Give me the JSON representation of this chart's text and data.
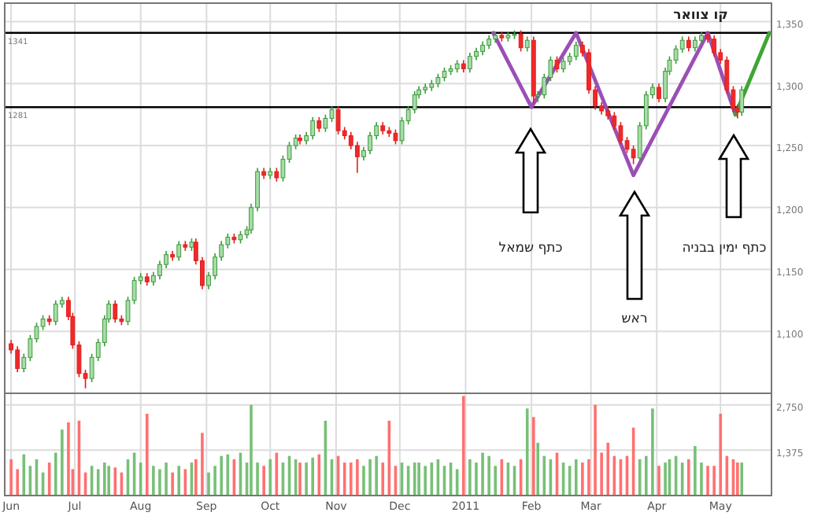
{
  "chart_data": [
    {
      "type": "candlestick",
      "tick_labels": "y",
      "grid": true,
      "xlim": [
        "2010-05-29",
        "2011-05-25"
      ],
      "xticks": [
        {
          "value": "2010-06-01",
          "label": null
        },
        {
          "value": "2010-07-01",
          "label": null
        },
        {
          "value": "2010-08-01",
          "label": null
        },
        {
          "value": "2010-09-01",
          "label": null
        },
        {
          "value": "2010-10-01",
          "label": null
        },
        {
          "value": "2010-11-01",
          "label": null
        },
        {
          "value": "2010-12-01",
          "label": null
        },
        {
          "value": "2011-01-01",
          "label": null
        },
        {
          "value": "2011-02-01",
          "label": null
        },
        {
          "value": "2011-03-01",
          "label": null
        },
        {
          "value": "2011-04-01",
          "label": null
        },
        {
          "value": "2011-05-01",
          "label": null
        }
      ],
      "ylim": [
        1050,
        1365
      ],
      "yticks": [
        {
          "value": 1100,
          "label": "1,100"
        },
        {
          "value": 1150,
          "label": "1,150"
        },
        {
          "value": 1200,
          "label": "1,200"
        },
        {
          "value": 1250,
          "label": "1,250"
        },
        {
          "value": 1300,
          "label": "1,300"
        },
        {
          "value": 1350,
          "label": "1,350"
        }
      ],
      "x": [
        "2010-06-01",
        "2010-06-04",
        "2010-06-07",
        "2010-06-10",
        "2010-06-13",
        "2010-06-16",
        "2010-06-19",
        "2010-06-22",
        "2010-06-25",
        "2010-06-28",
        "2010-06-30",
        "2010-07-03",
        "2010-07-06",
        "2010-07-09",
        "2010-07-12",
        "2010-07-15",
        "2010-07-17",
        "2010-07-20",
        "2010-07-23",
        "2010-07-26",
        "2010-07-29",
        "2010-08-01",
        "2010-08-04",
        "2010-08-07",
        "2010-08-10",
        "2010-08-13",
        "2010-08-16",
        "2010-08-19",
        "2010-08-22",
        "2010-08-25",
        "2010-08-27",
        "2010-08-30",
        "2010-09-02",
        "2010-09-05",
        "2010-09-08",
        "2010-09-11",
        "2010-09-14",
        "2010-09-17",
        "2010-09-20",
        "2010-09-22",
        "2010-09-25",
        "2010-09-28",
        "2010-10-01",
        "2010-10-04",
        "2010-10-07",
        "2010-10-10",
        "2010-10-13",
        "2010-10-15",
        "2010-10-18",
        "2010-10-21",
        "2010-10-24",
        "2010-10-27",
        "2010-10-30",
        "2010-11-02",
        "2010-11-05",
        "2010-11-08",
        "2010-11-11",
        "2010-11-14",
        "2010-11-17",
        "2010-11-20",
        "2010-11-23",
        "2010-11-26",
        "2010-11-29",
        "2010-12-02",
        "2010-12-05",
        "2010-12-08",
        "2010-12-10",
        "2010-12-13",
        "2010-12-16",
        "2010-12-19",
        "2010-12-22",
        "2010-12-25",
        "2010-12-28",
        "2010-12-31",
        "2011-01-03",
        "2011-01-06",
        "2011-01-09",
        "2011-01-12",
        "2011-01-15",
        "2011-01-18",
        "2011-01-21",
        "2011-01-24",
        "2011-01-27",
        "2011-01-30",
        "2011-02-02",
        "2011-02-04",
        "2011-02-07",
        "2011-02-10",
        "2011-02-13",
        "2011-02-16",
        "2011-02-19",
        "2011-02-22",
        "2011-02-25",
        "2011-02-28",
        "2011-03-03",
        "2011-03-06",
        "2011-03-09",
        "2011-03-12",
        "2011-03-15",
        "2011-03-18",
        "2011-03-21",
        "2011-03-24",
        "2011-03-27",
        "2011-03-30",
        "2011-04-02",
        "2011-04-05",
        "2011-04-07",
        "2011-04-10",
        "2011-04-13",
        "2011-04-16",
        "2011-04-19",
        "2011-04-22",
        "2011-04-25",
        "2011-04-28",
        "2011-05-01",
        "2011-05-04",
        "2011-05-07",
        "2011-05-09",
        "2011-05-11"
      ],
      "ohlc": [
        [
          1090,
          1093,
          1082,
          1085
        ],
        [
          1085,
          1088,
          1067,
          1070
        ],
        [
          1070,
          1082,
          1067,
          1079
        ],
        [
          1079,
          1097,
          1076,
          1094
        ],
        [
          1094,
          1107,
          1091,
          1104
        ],
        [
          1104,
          1113,
          1101,
          1110
        ],
        [
          1110,
          1113,
          1105,
          1108
        ],
        [
          1108,
          1125,
          1105,
          1122
        ],
        [
          1122,
          1128,
          1119,
          1125
        ],
        [
          1125,
          1128,
          1109,
          1112
        ],
        [
          1112,
          1115,
          1086,
          1089
        ],
        [
          1089,
          1092,
          1063,
          1066
        ],
        [
          1066,
          1069,
          1054,
          1062
        ],
        [
          1062,
          1082,
          1059,
          1079
        ],
        [
          1079,
          1094,
          1076,
          1091
        ],
        [
          1091,
          1113,
          1088,
          1110
        ],
        [
          1110,
          1125,
          1107,
          1122
        ],
        [
          1122,
          1125,
          1107,
          1110
        ],
        [
          1110,
          1113,
          1105,
          1108
        ],
        [
          1108,
          1128,
          1105,
          1125
        ],
        [
          1125,
          1144,
          1122,
          1141
        ],
        [
          1141,
          1147,
          1138,
          1144
        ],
        [
          1144,
          1147,
          1137,
          1140
        ],
        [
          1140,
          1148,
          1137,
          1145
        ],
        [
          1145,
          1157,
          1142,
          1154
        ],
        [
          1154,
          1165,
          1151,
          1162
        ],
        [
          1162,
          1165,
          1157,
          1160
        ],
        [
          1160,
          1173,
          1157,
          1170
        ],
        [
          1170,
          1173,
          1165,
          1168
        ],
        [
          1168,
          1175,
          1165,
          1172
        ],
        [
          1172,
          1175,
          1154,
          1157
        ],
        [
          1157,
          1160,
          1134,
          1137
        ],
        [
          1137,
          1148,
          1134,
          1145
        ],
        [
          1145,
          1163,
          1142,
          1160
        ],
        [
          1160,
          1173,
          1157,
          1170
        ],
        [
          1170,
          1179,
          1167,
          1176
        ],
        [
          1176,
          1179,
          1171,
          1174
        ],
        [
          1174,
          1181,
          1171,
          1178
        ],
        [
          1178,
          1185,
          1175,
          1182
        ],
        [
          1182,
          1203,
          1179,
          1200
        ],
        [
          1200,
          1232,
          1197,
          1229
        ],
        [
          1229,
          1232,
          1223,
          1226
        ],
        [
          1226,
          1232,
          1223,
          1229
        ],
        [
          1229,
          1232,
          1221,
          1224
        ],
        [
          1224,
          1242,
          1221,
          1239
        ],
        [
          1239,
          1253,
          1236,
          1250
        ],
        [
          1250,
          1259,
          1247,
          1256
        ],
        [
          1256,
          1259,
          1251,
          1254
        ],
        [
          1254,
          1261,
          1251,
          1258
        ],
        [
          1258,
          1273,
          1255,
          1270
        ],
        [
          1270,
          1273,
          1261,
          1264
        ],
        [
          1264,
          1275,
          1261,
          1272
        ],
        [
          1272,
          1282,
          1269,
          1279
        ],
        [
          1279,
          1282,
          1259,
          1262
        ],
        [
          1262,
          1265,
          1255,
          1258
        ],
        [
          1258,
          1261,
          1247,
          1250
        ],
        [
          1250,
          1253,
          1228,
          1241
        ],
        [
          1241,
          1249,
          1238,
          1246
        ],
        [
          1246,
          1261,
          1243,
          1258
        ],
        [
          1258,
          1269,
          1255,
          1266
        ],
        [
          1266,
          1269,
          1259,
          1262
        ],
        [
          1262,
          1265,
          1257,
          1260
        ],
        [
          1260,
          1263,
          1251,
          1254
        ],
        [
          1254,
          1273,
          1251,
          1270
        ],
        [
          1270,
          1282,
          1267,
          1279
        ],
        [
          1279,
          1294,
          1276,
          1291
        ],
        [
          1291,
          1298,
          1288,
          1295
        ],
        [
          1295,
          1300,
          1292,
          1297
        ],
        [
          1297,
          1303,
          1294,
          1300
        ],
        [
          1300,
          1308,
          1297,
          1305
        ],
        [
          1305,
          1313,
          1302,
          1310
        ],
        [
          1310,
          1315,
          1307,
          1312
        ],
        [
          1312,
          1319,
          1309,
          1316
        ],
        [
          1316,
          1319,
          1309,
          1312
        ],
        [
          1312,
          1325,
          1309,
          1322
        ],
        [
          1322,
          1329,
          1319,
          1326
        ],
        [
          1326,
          1334,
          1323,
          1331
        ],
        [
          1331,
          1339,
          1328,
          1336
        ],
        [
          1336,
          1342,
          1333,
          1339
        ],
        [
          1339,
          1342,
          1334,
          1337
        ],
        [
          1337,
          1342,
          1334,
          1339
        ],
        [
          1339,
          1343,
          1336,
          1340
        ],
        [
          1340,
          1343,
          1326,
          1329
        ],
        [
          1329,
          1338,
          1326,
          1335
        ],
        [
          1335,
          1338,
          1284,
          1290
        ],
        [
          1290,
          1294,
          1285,
          1291
        ],
        [
          1291,
          1308,
          1288,
          1305
        ],
        [
          1305,
          1322,
          1302,
          1319
        ],
        [
          1319,
          1322,
          1309,
          1312
        ],
        [
          1312,
          1321,
          1309,
          1318
        ],
        [
          1318,
          1325,
          1315,
          1322
        ],
        [
          1322,
          1334,
          1319,
          1331
        ],
        [
          1331,
          1334,
          1322,
          1325
        ],
        [
          1325,
          1328,
          1292,
          1295
        ],
        [
          1295,
          1298,
          1279,
          1282
        ],
        [
          1282,
          1285,
          1275,
          1278
        ],
        [
          1278,
          1281,
          1271,
          1274
        ],
        [
          1274,
          1277,
          1263,
          1266
        ],
        [
          1266,
          1269,
          1251,
          1254
        ],
        [
          1254,
          1257,
          1244,
          1247
        ],
        [
          1247,
          1250,
          1235,
          1240
        ],
        [
          1240,
          1269,
          1237,
          1266
        ],
        [
          1266,
          1294,
          1263,
          1291
        ],
        [
          1291,
          1300,
          1288,
          1297
        ],
        [
          1297,
          1300,
          1285,
          1288
        ],
        [
          1288,
          1313,
          1285,
          1310
        ],
        [
          1310,
          1322,
          1307,
          1319
        ],
        [
          1319,
          1331,
          1316,
          1328
        ],
        [
          1328,
          1338,
          1325,
          1335
        ],
        [
          1335,
          1338,
          1326,
          1329
        ],
        [
          1329,
          1338,
          1326,
          1335
        ],
        [
          1335,
          1342,
          1332,
          1339
        ],
        [
          1339,
          1342,
          1333,
          1336
        ],
        [
          1336,
          1339,
          1322,
          1325
        ],
        [
          1325,
          1328,
          1316,
          1319
        ],
        [
          1319,
          1322,
          1292,
          1295
        ],
        [
          1295,
          1298,
          1277,
          1280
        ],
        [
          1280,
          1283,
          1272,
          1277
        ],
        [
          1277,
          1298,
          1274,
          1295
        ]
      ],
      "series": [
        {
          "type": "line",
          "color": "#9b4fb5",
          "x": [
            "2011-01-14",
            "2011-02-01",
            "2011-02-22",
            "2011-03-21",
            "2011-04-25",
            "2011-05-08"
          ],
          "values": [
            1341,
            1281,
            1341,
            1226,
            1341,
            1275
          ]
        },
        {
          "type": "line",
          "color": "#3fa535",
          "x": [
            "2011-05-08",
            "2011-05-24"
          ],
          "values": [
            1275,
            1341
          ]
        }
      ],
      "ref_lines": [
        {
          "axis": "y",
          "value": 1341,
          "label": "1341",
          "color": "#000000"
        },
        {
          "axis": "y",
          "value": 1281,
          "label": "1281",
          "color": "#000000"
        }
      ],
      "annotations": [
        "קו צוואר",
        "כתף שמאל",
        "ראש",
        "כתף ימין בבניה"
      ]
    },
    {
      "type": "bar",
      "grid": true,
      "xlim": [
        "2010-05-29",
        "2011-05-25"
      ],
      "xticks": [
        {
          "value": "2010-06-01",
          "label": "Jun"
        },
        {
          "value": "2010-07-01",
          "label": "Jul"
        },
        {
          "value": "2010-08-01",
          "label": "Aug"
        },
        {
          "value": "2010-09-01",
          "label": "Sep"
        },
        {
          "value": "2010-10-01",
          "label": "Oct"
        },
        {
          "value": "2010-11-01",
          "label": "Nov"
        },
        {
          "value": "2010-12-01",
          "label": "Dec"
        },
        {
          "value": "2011-01-01",
          "label": "2011"
        },
        {
          "value": "2011-02-01",
          "label": "Feb"
        },
        {
          "value": "2011-03-01",
          "label": "Mar"
        },
        {
          "value": "2011-04-01",
          "label": "Apr"
        },
        {
          "value": "2011-05-01",
          "label": "May"
        }
      ],
      "ylim": [
        0,
        3100
      ],
      "yticks": [
        {
          "value": 1375,
          "label": "1,375"
        },
        {
          "value": 2750,
          "label": "2,750"
        }
      ],
      "x": [
        "2010-06-01",
        "2010-06-04",
        "2010-06-07",
        "2010-06-10",
        "2010-06-13",
        "2010-06-16",
        "2010-06-19",
        "2010-06-22",
        "2010-06-25",
        "2010-06-28",
        "2010-06-30",
        "2010-07-03",
        "2010-07-06",
        "2010-07-09",
        "2010-07-12",
        "2010-07-15",
        "2010-07-17",
        "2010-07-20",
        "2010-07-23",
        "2010-07-26",
        "2010-07-29",
        "2010-08-01",
        "2010-08-04",
        "2010-08-07",
        "2010-08-10",
        "2010-08-13",
        "2010-08-16",
        "2010-08-19",
        "2010-08-22",
        "2010-08-25",
        "2010-08-27",
        "2010-08-30",
        "2010-09-02",
        "2010-09-05",
        "2010-09-08",
        "2010-09-11",
        "2010-09-14",
        "2010-09-17",
        "2010-09-20",
        "2010-09-22",
        "2010-09-25",
        "2010-09-28",
        "2010-10-01",
        "2010-10-04",
        "2010-10-07",
        "2010-10-10",
        "2010-10-13",
        "2010-10-15",
        "2010-10-18",
        "2010-10-21",
        "2010-10-24",
        "2010-10-27",
        "2010-10-30",
        "2010-11-02",
        "2010-11-05",
        "2010-11-08",
        "2010-11-11",
        "2010-11-14",
        "2010-11-17",
        "2010-11-20",
        "2010-11-23",
        "2010-11-26",
        "2010-11-29",
        "2010-12-02",
        "2010-12-05",
        "2010-12-08",
        "2010-12-10",
        "2010-12-13",
        "2010-12-16",
        "2010-12-19",
        "2010-12-22",
        "2010-12-25",
        "2010-12-28",
        "2010-12-31",
        "2011-01-03",
        "2011-01-06",
        "2011-01-09",
        "2011-01-12",
        "2011-01-15",
        "2011-01-18",
        "2011-01-21",
        "2011-01-24",
        "2011-01-27",
        "2011-01-30",
        "2011-02-02",
        "2011-02-04",
        "2011-02-07",
        "2011-02-10",
        "2011-02-13",
        "2011-02-16",
        "2011-02-19",
        "2011-02-22",
        "2011-02-25",
        "2011-02-28",
        "2011-03-03",
        "2011-03-06",
        "2011-03-09",
        "2011-03-12",
        "2011-03-15",
        "2011-03-18",
        "2011-03-21",
        "2011-03-24",
        "2011-03-27",
        "2011-03-30",
        "2011-04-02",
        "2011-04-05",
        "2011-04-07",
        "2011-04-10",
        "2011-04-13",
        "2011-04-16",
        "2011-04-19",
        "2011-04-22",
        "2011-04-25",
        "2011-04-28",
        "2011-05-01",
        "2011-05-04",
        "2011-05-07",
        "2011-05-09",
        "2011-05-11"
      ],
      "values": [
        1100,
        800,
        1250,
        900,
        1100,
        700,
        1000,
        1300,
        2000,
        2220,
        800,
        2270,
        700,
        900,
        800,
        1000,
        900,
        850,
        700,
        1100,
        1300,
        1000,
        2480,
        900,
        800,
        1000,
        700,
        900,
        800,
        1000,
        1100,
        1900,
        700,
        900,
        1200,
        1250,
        1100,
        1300,
        1000,
        2750,
        1000,
        900,
        1100,
        1300,
        1000,
        1200,
        1100,
        1000,
        1000,
        1150,
        1250,
        2270,
        1100,
        1200,
        1000,
        1000,
        1100,
        900,
        1100,
        1200,
        1000,
        2270,
        900,
        1000,
        900,
        1000,
        1000,
        900,
        1000,
        1100,
        900,
        1000,
        800,
        3020,
        1100,
        1000,
        1300,
        1200,
        900,
        1100,
        1000,
        900,
        1100,
        2640,
        2380,
        1600,
        1200,
        1100,
        1300,
        1000,
        900,
        1100,
        1000,
        1100,
        2750,
        1300,
        1600,
        1200,
        1100,
        1200,
        2060,
        1100,
        1200,
        2640,
        900,
        1000,
        1100,
        1200,
        1000,
        1100,
        1500,
        1000,
        900,
        900,
        2480,
        1200,
        1100,
        1000,
        1000
      ],
      "colors": [
        "#ff7070",
        "#ff7070",
        "#77c077",
        "#77c077",
        "#77c077",
        "#77c077",
        "#ff7070",
        "#77c077",
        "#77c077",
        "#ff7070",
        "#ff7070",
        "#ff7070",
        "#ff7070",
        "#77c077",
        "#77c077",
        "#77c077",
        "#77c077",
        "#ff7070",
        "#ff7070",
        "#77c077",
        "#77c077",
        "#77c077",
        "#ff7070",
        "#77c077",
        "#77c077",
        "#77c077",
        "#ff7070",
        "#77c077",
        "#ff7070",
        "#77c077",
        "#ff7070",
        "#ff7070",
        "#77c077",
        "#77c077",
        "#77c077",
        "#77c077",
        "#ff7070",
        "#77c077",
        "#77c077",
        "#77c077",
        "#77c077",
        "#ff7070",
        "#77c077",
        "#ff7070",
        "#77c077",
        "#77c077",
        "#77c077",
        "#ff7070",
        "#77c077",
        "#77c077",
        "#ff7070",
        "#77c077",
        "#77c077",
        "#ff7070",
        "#ff7070",
        "#ff7070",
        "#ff7070",
        "#77c077",
        "#77c077",
        "#77c077",
        "#ff7070",
        "#ff7070",
        "#ff7070",
        "#77c077",
        "#77c077",
        "#77c077",
        "#77c077",
        "#77c077",
        "#77c077",
        "#77c077",
        "#77c077",
        "#77c077",
        "#77c077",
        "#ff7070",
        "#77c077",
        "#77c077",
        "#77c077",
        "#77c077",
        "#77c077",
        "#ff7070",
        "#77c077",
        "#77c077",
        "#ff7070",
        "#77c077",
        "#ff7070",
        "#77c077",
        "#77c077",
        "#77c077",
        "#ff7070",
        "#77c077",
        "#77c077",
        "#77c077",
        "#ff7070",
        "#ff7070",
        "#ff7070",
        "#ff7070",
        "#ff7070",
        "#ff7070",
        "#ff7070",
        "#ff7070",
        "#ff7070",
        "#77c077",
        "#77c077",
        "#77c077",
        "#ff7070",
        "#77c077",
        "#77c077",
        "#77c077",
        "#77c077",
        "#ff7070",
        "#77c077",
        "#77c077",
        "#ff7070",
        "#ff7070",
        "#ff7070",
        "#ff7070",
        "#ff7070",
        "#ff7070",
        "#77c077"
      ]
    }
  ]
}
